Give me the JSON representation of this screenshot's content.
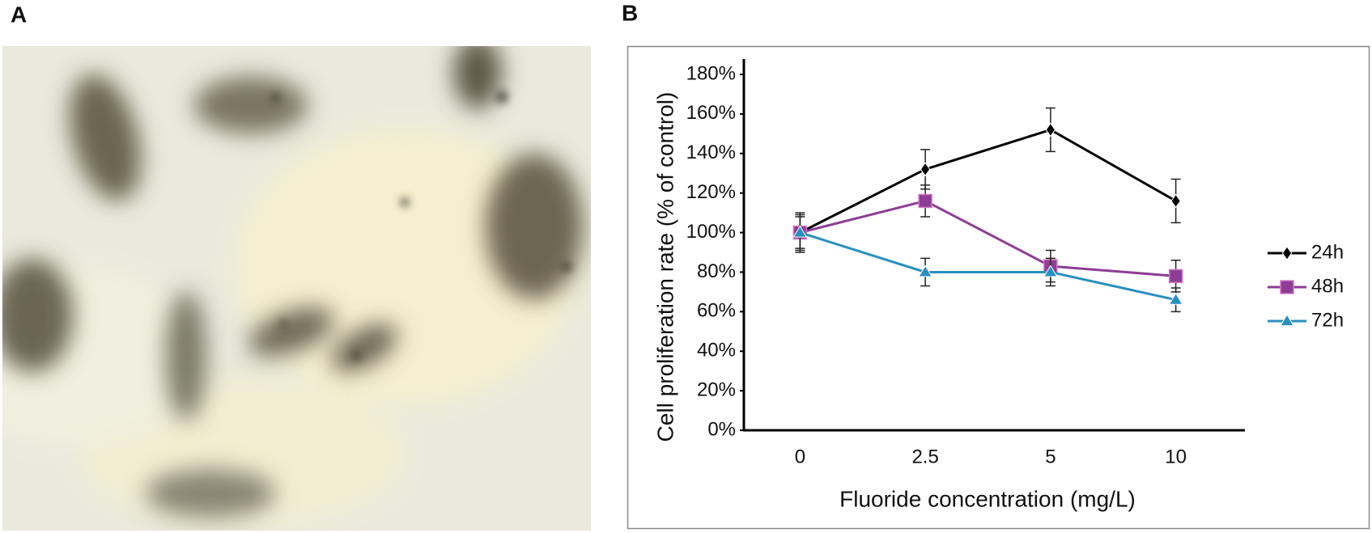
{
  "panel_labels": [
    "A",
    "B"
  ],
  "chart_data": {
    "type": "line",
    "x_label": "Fluoride concentration (mg/L)",
    "y_label": "Cell proliferation rate (% of control)",
    "categories": [
      "0",
      "2.5",
      "5",
      "10"
    ],
    "ylim": [
      0,
      180
    ],
    "yticks": [
      {
        "value": 0,
        "label": "0%"
      },
      {
        "value": 20,
        "label": "20%"
      },
      {
        "value": 40,
        "label": "40%"
      },
      {
        "value": 60,
        "label": "60%"
      },
      {
        "value": 80,
        "label": "80%"
      },
      {
        "value": 100,
        "label": "100%"
      },
      {
        "value": 120,
        "label": "120%"
      },
      {
        "value": 140,
        "label": "140%"
      },
      {
        "value": 160,
        "label": "160%"
      },
      {
        "value": 180,
        "label": "180%"
      }
    ],
    "legend": "right",
    "series": [
      {
        "name": "24h",
        "color": "#000000",
        "marker": "diamond",
        "values": [
          100,
          132,
          152,
          116
        ],
        "errors": [
          10,
          10,
          11,
          11
        ]
      },
      {
        "name": "48h",
        "color": "#8e3d96",
        "marker": "square",
        "values": [
          100,
          116,
          83,
          78
        ],
        "errors": [
          9,
          8,
          8,
          8
        ]
      },
      {
        "name": "72h",
        "color": "#2a8fbf",
        "marker": "triangle",
        "values": [
          100,
          80,
          80,
          66
        ],
        "errors": [
          8,
          7,
          7,
          6
        ]
      }
    ]
  }
}
